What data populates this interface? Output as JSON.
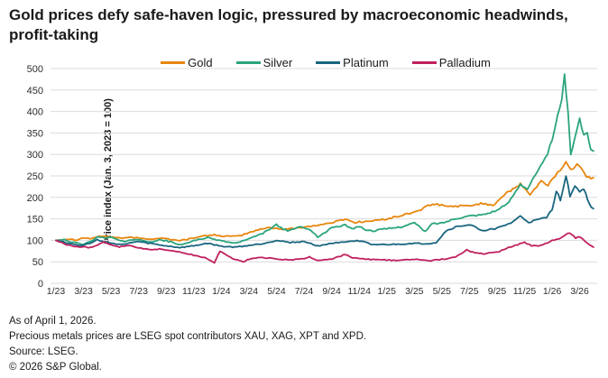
{
  "chart_data": {
    "type": "line",
    "title": "Gold prices defy safe-haven logic, pressured by macroeconomic headwinds, profit-taking",
    "ylabel": "Price index (Jan. 3, 2023 = 100)",
    "xlabel": "",
    "ylim": [
      0,
      500
    ],
    "ytick_interval": 50,
    "grid": "horizontal",
    "legend_position": "top",
    "x_unit": "months since Jan 2023 (0 = 1/23, data through 4/1/26)",
    "xtick_positions": [
      0,
      2,
      4,
      6,
      8,
      10,
      12,
      14,
      16,
      18,
      20,
      22,
      24,
      26,
      28,
      30,
      32,
      34,
      36,
      38
    ],
    "xtick_labels": [
      "1/23",
      "3/23",
      "5/23",
      "7/23",
      "9/23",
      "11/23",
      "1/24",
      "3/24",
      "5/24",
      "7/24",
      "9/24",
      "11/24",
      "1/25",
      "3/25",
      "5/25",
      "7/25",
      "9/25",
      "11/25",
      "1/26",
      "3/26"
    ],
    "series": [
      {
        "name": "Gold",
        "color": "#E8860D",
        "points": [
          [
            0,
            100
          ],
          [
            0.5,
            102
          ],
          [
            1,
            103
          ],
          [
            1.5,
            101
          ],
          [
            2,
            106
          ],
          [
            2.5,
            104
          ],
          [
            3,
            108
          ],
          [
            3.5,
            110
          ],
          [
            4,
            108
          ],
          [
            4.5,
            106
          ],
          [
            5,
            105
          ],
          [
            5.5,
            107
          ],
          [
            6,
            105
          ],
          [
            6.5,
            104
          ],
          [
            7,
            103
          ],
          [
            7.5,
            105
          ],
          [
            8,
            104
          ],
          [
            8.5,
            101
          ],
          [
            9,
            100
          ],
          [
            9.5,
            102
          ],
          [
            10,
            106
          ],
          [
            11,
            111
          ],
          [
            11.5,
            113
          ],
          [
            12,
            110
          ],
          [
            13,
            109
          ],
          [
            13.5,
            112
          ],
          [
            14,
            118
          ],
          [
            15,
            127
          ],
          [
            15.5,
            130
          ],
          [
            16,
            128
          ],
          [
            16.5,
            125
          ],
          [
            17,
            127
          ],
          [
            18,
            131
          ],
          [
            19,
            135
          ],
          [
            20,
            141
          ],
          [
            21,
            150
          ],
          [
            21.7,
            141
          ],
          [
            22,
            143
          ],
          [
            23,
            145
          ],
          [
            24,
            150
          ],
          [
            25,
            157
          ],
          [
            26,
            166
          ],
          [
            26.5,
            172
          ],
          [
            27,
            180
          ],
          [
            27.5,
            184
          ],
          [
            28,
            182
          ],
          [
            28.5,
            178
          ],
          [
            29,
            180
          ],
          [
            30,
            180
          ],
          [
            30.5,
            184
          ],
          [
            31,
            186
          ],
          [
            31.7,
            182
          ],
          [
            32,
            190
          ],
          [
            32.7,
            212
          ],
          [
            33.3,
            220
          ],
          [
            33.7,
            232
          ],
          [
            34.4,
            206
          ],
          [
            35.2,
            237
          ],
          [
            35.7,
            229
          ],
          [
            36.2,
            250
          ],
          [
            36.6,
            264
          ],
          [
            37,
            283
          ],
          [
            37.35,
            263
          ],
          [
            37.8,
            279
          ],
          [
            38.1,
            272
          ],
          [
            38.5,
            250
          ],
          [
            38.8,
            242
          ],
          [
            39,
            246
          ]
        ]
      },
      {
        "name": "Silver",
        "color": "#2AA47E",
        "points": [
          [
            0,
            100
          ],
          [
            0.6,
            102
          ],
          [
            1,
            97
          ],
          [
            1.6,
            93
          ],
          [
            2,
            91
          ],
          [
            2.5,
            97
          ],
          [
            3,
            108
          ],
          [
            3.6,
            106
          ],
          [
            4,
            107
          ],
          [
            4.5,
            101
          ],
          [
            5,
            96
          ],
          [
            5.5,
            101
          ],
          [
            6,
            103
          ],
          [
            6.6,
            98
          ],
          [
            7,
            97
          ],
          [
            7.5,
            101
          ],
          [
            8,
            99
          ],
          [
            8.5,
            95
          ],
          [
            9,
            89
          ],
          [
            9.5,
            93
          ],
          [
            10,
            100
          ],
          [
            11,
            106
          ],
          [
            12,
            99
          ],
          [
            13,
            93
          ],
          [
            14,
            103
          ],
          [
            15,
            116
          ],
          [
            16,
            136
          ],
          [
            16.8,
            121
          ],
          [
            17.6,
            131
          ],
          [
            18.3,
            128
          ],
          [
            19,
            108
          ],
          [
            19.4,
            115
          ],
          [
            20,
            130
          ],
          [
            21,
            135
          ],
          [
            21.6,
            127
          ],
          [
            22,
            133
          ],
          [
            22.5,
            124
          ],
          [
            23,
            122
          ],
          [
            24,
            127
          ],
          [
            25,
            131
          ],
          [
            26,
            141
          ],
          [
            26.8,
            120
          ],
          [
            27.3,
            139
          ],
          [
            28,
            140
          ],
          [
            29,
            151
          ],
          [
            30,
            157
          ],
          [
            31,
            160
          ],
          [
            32,
            170
          ],
          [
            32.7,
            183
          ],
          [
            33,
            196
          ],
          [
            33.7,
            232
          ],
          [
            34.2,
            220
          ],
          [
            34.6,
            242
          ],
          [
            35,
            262
          ],
          [
            35.5,
            290
          ],
          [
            36,
            330
          ],
          [
            36.4,
            388
          ],
          [
            36.7,
            432
          ],
          [
            36.9,
            483
          ],
          [
            37.15,
            395
          ],
          [
            37.35,
            302
          ],
          [
            37.6,
            332
          ],
          [
            38,
            386
          ],
          [
            38.3,
            342
          ],
          [
            38.55,
            352
          ],
          [
            38.8,
            312
          ],
          [
            39,
            308
          ]
        ]
      },
      {
        "name": "Platinum",
        "color": "#19657F",
        "points": [
          [
            0,
            100
          ],
          [
            0.7,
            95
          ],
          [
            1,
            93
          ],
          [
            1.6,
            89
          ],
          [
            2,
            89
          ],
          [
            2.6,
            94
          ],
          [
            3,
            101
          ],
          [
            3.5,
            97
          ],
          [
            4,
            94
          ],
          [
            4.5,
            91
          ],
          [
            5,
            90
          ],
          [
            5.5,
            95
          ],
          [
            6,
            97
          ],
          [
            6.5,
            94
          ],
          [
            7,
            92
          ],
          [
            7.5,
            89
          ],
          [
            8,
            87
          ],
          [
            9,
            83
          ],
          [
            10,
            87
          ],
          [
            11,
            93
          ],
          [
            12,
            86
          ],
          [
            13,
            84
          ],
          [
            14,
            88
          ],
          [
            15,
            92
          ],
          [
            16,
            100
          ],
          [
            17,
            95
          ],
          [
            18,
            97
          ],
          [
            19,
            87
          ],
          [
            20,
            93
          ],
          [
            21,
            97
          ],
          [
            22,
            99
          ],
          [
            23,
            90
          ],
          [
            24,
            90
          ],
          [
            25,
            91
          ],
          [
            26,
            93
          ],
          [
            27,
            92
          ],
          [
            27.6,
            95
          ],
          [
            28.3,
            122
          ],
          [
            29,
            131
          ],
          [
            29.5,
            134
          ],
          [
            30,
            136
          ],
          [
            31,
            123
          ],
          [
            32,
            128
          ],
          [
            33,
            140
          ],
          [
            33.7,
            156
          ],
          [
            34.3,
            142
          ],
          [
            35,
            148
          ],
          [
            35.6,
            153
          ],
          [
            36,
            172
          ],
          [
            36.3,
            216
          ],
          [
            36.6,
            193
          ],
          [
            37,
            252
          ],
          [
            37.3,
            204
          ],
          [
            37.65,
            228
          ],
          [
            38,
            212
          ],
          [
            38.3,
            221
          ],
          [
            38.7,
            183
          ],
          [
            39,
            174
          ]
        ]
      },
      {
        "name": "Palladium",
        "color": "#C0205E",
        "points": [
          [
            0,
            100
          ],
          [
            0.6,
            92
          ],
          [
            1,
            88
          ],
          [
            1.5,
            85
          ],
          [
            2,
            85
          ],
          [
            2.5,
            83
          ],
          [
            3,
            88
          ],
          [
            3.4,
            96
          ],
          [
            4,
            89
          ],
          [
            4.6,
            85
          ],
          [
            5,
            86
          ],
          [
            5.5,
            88
          ],
          [
            6,
            82
          ],
          [
            7,
            78
          ],
          [
            7.5,
            80
          ],
          [
            8,
            77
          ],
          [
            9,
            73
          ],
          [
            10,
            65
          ],
          [
            10.8,
            60
          ],
          [
            11.5,
            48
          ],
          [
            11.9,
            75
          ],
          [
            12.3,
            67
          ],
          [
            13,
            55
          ],
          [
            13.6,
            50
          ],
          [
            14,
            56
          ],
          [
            15,
            60
          ],
          [
            16,
            57
          ],
          [
            17,
            54
          ],
          [
            18,
            57
          ],
          [
            18.4,
            61
          ],
          [
            19,
            53
          ],
          [
            20,
            56
          ],
          [
            21,
            67
          ],
          [
            21.5,
            59
          ],
          [
            22,
            57
          ],
          [
            23,
            55
          ],
          [
            24,
            54
          ],
          [
            25,
            53
          ],
          [
            26,
            56
          ],
          [
            27,
            52
          ],
          [
            28,
            56
          ],
          [
            29,
            61
          ],
          [
            29.8,
            78
          ],
          [
            30.4,
            70
          ],
          [
            31,
            69
          ],
          [
            32,
            72
          ],
          [
            33,
            85
          ],
          [
            34,
            95
          ],
          [
            34.5,
            88
          ],
          [
            35,
            86
          ],
          [
            36,
            99
          ],
          [
            36.5,
            104
          ],
          [
            37,
            113
          ],
          [
            37.3,
            118
          ],
          [
            37.7,
            106
          ],
          [
            38,
            109
          ],
          [
            38.4,
            97
          ],
          [
            38.8,
            87
          ],
          [
            39,
            84
          ]
        ]
      }
    ]
  },
  "footnotes": [
    "As of April 1, 2026.",
    "Precious metals prices are LSEG spot contributors XAU, XAG, XPT and XPD.",
    "Source: LSEG.",
    "© 2026 S&P Global."
  ]
}
